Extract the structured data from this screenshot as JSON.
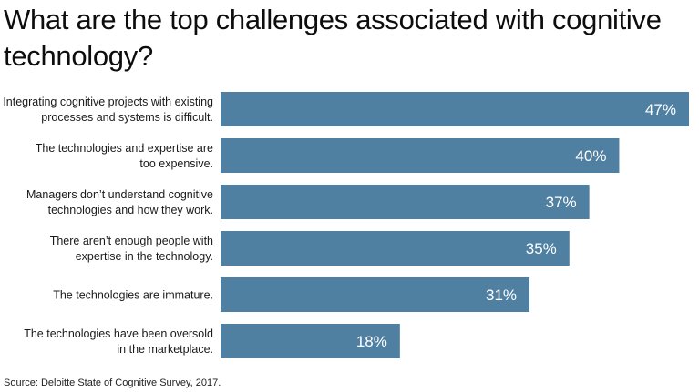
{
  "title": "What are the top challenges associated with cognitive technology?",
  "source": "Source: Deloitte State of Cognitive Survey, 2017.",
  "colors": {
    "bar": "#4f7fa1",
    "value_text": "#ffffff",
    "label_text": "#1a1a1a"
  },
  "chart_data": {
    "type": "bar",
    "orientation": "horizontal",
    "title": "What are the top challenges associated with cognitive technology?",
    "xlabel": "",
    "ylabel": "",
    "xlim": [
      0,
      47
    ],
    "grid": false,
    "legend": "none",
    "categories": [
      [
        "Integrating cognitive projects with existing",
        "processes and systems is difficult."
      ],
      [
        "The technologies and expertise are",
        "too expensive."
      ],
      [
        "Managers don’t understand cognitive",
        "technologies and how they work."
      ],
      [
        "There aren’t enough people with",
        "expertise in the technology."
      ],
      [
        "The technologies are immature."
      ],
      [
        "The technologies have been oversold",
        "in the marketplace."
      ]
    ],
    "values": [
      47,
      40,
      37,
      35,
      31,
      18
    ],
    "value_labels": [
      "47%",
      "40%",
      "37%",
      "35%",
      "31%",
      "18%"
    ],
    "source": "Source: Deloitte State of Cognitive Survey, 2017."
  }
}
